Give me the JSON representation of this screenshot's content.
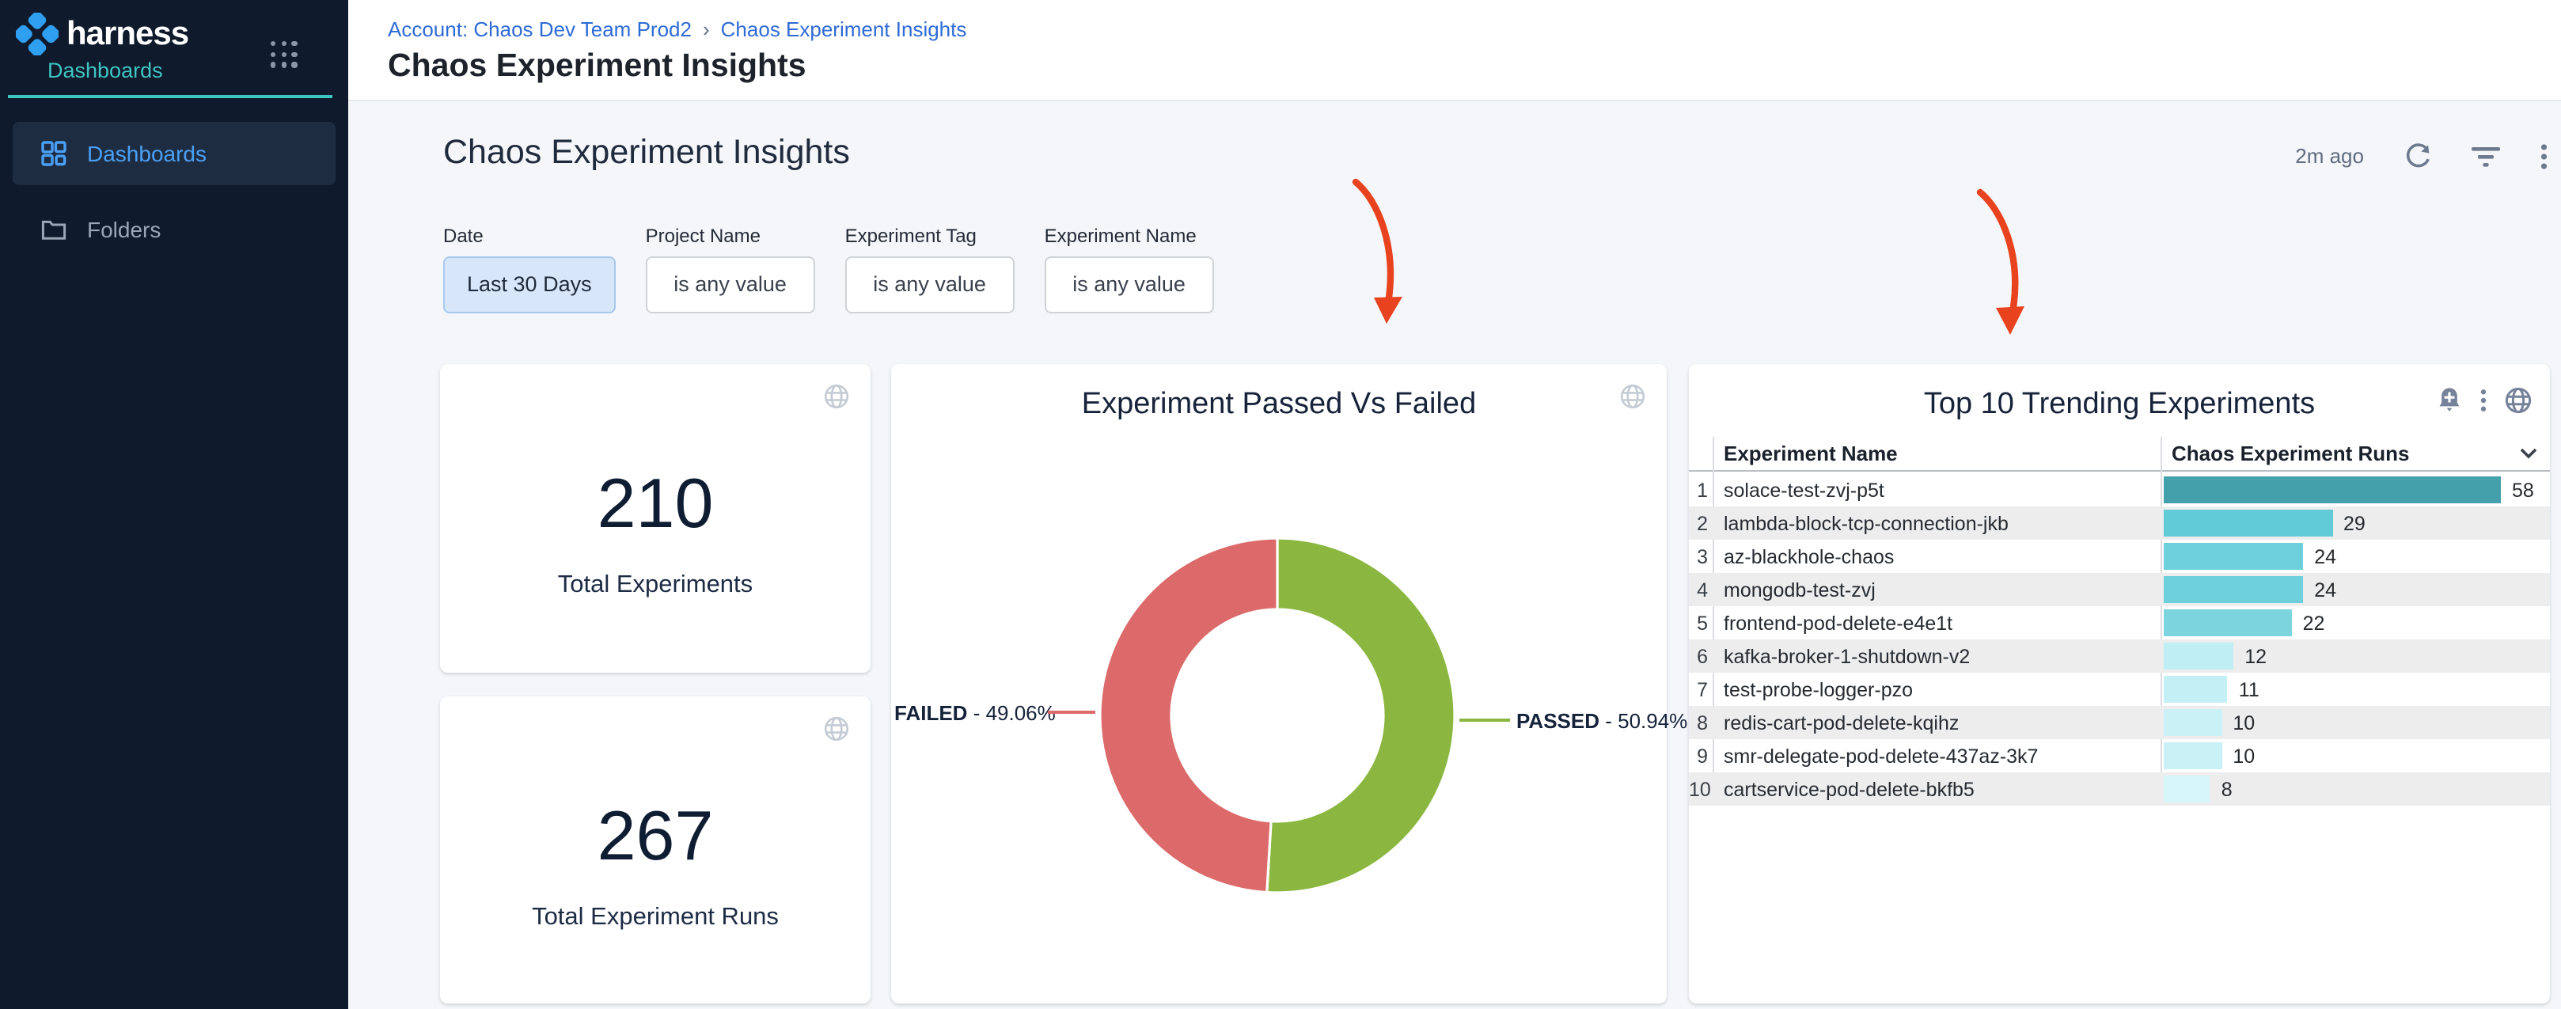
{
  "app": {
    "logo_text": "harness",
    "product": "Dashboards"
  },
  "sidebar": {
    "items": [
      {
        "label": "Dashboards",
        "active": true
      },
      {
        "label": "Folders",
        "active": false
      }
    ]
  },
  "breadcrumb": {
    "account_link": "Account: Chaos Dev Team Prod2",
    "separator": "›",
    "current": "Chaos Experiment Insights"
  },
  "header": {
    "page_title": "Chaos Experiment Insights"
  },
  "toolbar": {
    "heading": "Chaos Experiment Insights",
    "last_updated": "2m ago"
  },
  "filters": [
    {
      "label": "Date",
      "value": "Last 30 Days",
      "highlighted": true
    },
    {
      "label": "Project Name",
      "value": "is any value",
      "highlighted": false
    },
    {
      "label": "Experiment Tag",
      "value": "is any value",
      "highlighted": false
    },
    {
      "label": "Experiment Name",
      "value": "is any value",
      "highlighted": false
    }
  ],
  "stats": [
    {
      "value": "210",
      "label": "Total Experiments"
    },
    {
      "value": "267",
      "label": "Total Experiment Runs"
    }
  ],
  "donut": {
    "title": "Experiment Passed Vs Failed",
    "slices": [
      {
        "label": "PASSED",
        "suffix": " - 50.94%",
        "pct": 50.94,
        "color": "#8bb741"
      },
      {
        "label": "FAILED",
        "suffix": " - 49.06%",
        "pct": 49.06,
        "color": "#dd6a6a"
      }
    ]
  },
  "table": {
    "title": "Top 10 Trending Experiments",
    "columns": [
      "Experiment Name",
      "Chaos Experiment Runs"
    ],
    "max_runs": 58,
    "rows": [
      {
        "rank": "1",
        "name": "solace-test-zvj-p5t",
        "runs": 58,
        "bar_color": "#44a0ab"
      },
      {
        "rank": "2",
        "name": "lambda-block-tcp-connection-jkb",
        "runs": 29,
        "bar_color": "#61cbd8"
      },
      {
        "rank": "3",
        "name": "az-blackhole-chaos",
        "runs": 24,
        "bar_color": "#6ed0da"
      },
      {
        "rank": "4",
        "name": "mongodb-test-zvj",
        "runs": 24,
        "bar_color": "#6ed0da"
      },
      {
        "rank": "5",
        "name": "frontend-pod-delete-e4e1t",
        "runs": 22,
        "bar_color": "#7cd4de"
      },
      {
        "rank": "6",
        "name": "kafka-broker-1-shutdown-v2",
        "runs": 12,
        "bar_color": "#bfeef4"
      },
      {
        "rank": "7",
        "name": "test-probe-logger-pzo",
        "runs": 11,
        "bar_color": "#c4eff5"
      },
      {
        "rank": "8",
        "name": "redis-cart-pod-delete-kqihz",
        "runs": 10,
        "bar_color": "#c9f1f6"
      },
      {
        "rank": "9",
        "name": "smr-delegate-pod-delete-437az-3k7",
        "runs": 10,
        "bar_color": "#c9f1f6"
      },
      {
        "rank": "10",
        "name": "cartservice-pod-delete-bkfb5",
        "runs": 8,
        "bar_color": "#d7f6fa"
      }
    ]
  },
  "colors": {
    "sidebar_bg": "#0f1a2c",
    "sidebar_teal": "#3ec6c3",
    "sidebar_active_bg": "#1e2c41",
    "sidebar_active_text": "#4aa0f6",
    "sidebar_muted": "#9aa5b5",
    "link_blue": "#2e6bd6",
    "content_bg": "#f4f6f9",
    "icon_gray": "#76829a",
    "globe_gray": "#c5cbd4",
    "stripe": "#ededee",
    "passed_green": "#8bb741",
    "failed_red": "#dd6a6a",
    "arrow_red": "#e8421f",
    "date_filter_bg": "#d7e7f9",
    "date_filter_border": "#a6c8ee",
    "button_border": "#cfd2d6",
    "logo_blue": "#2f9ff1"
  },
  "chart_data": [
    {
      "type": "pie",
      "donut": true,
      "title": "Experiment Passed Vs Failed",
      "labels": [
        "PASSED",
        "FAILED"
      ],
      "values": [
        50.94,
        49.06
      ],
      "unit": "%",
      "colors": [
        "#8bb741",
        "#dd6a6a"
      ],
      "legend_position": "callout-labels"
    },
    {
      "type": "bar",
      "orientation": "horizontal",
      "title": "Top 10 Trending Experiments",
      "categories": [
        "solace-test-zvj-p5t",
        "lambda-block-tcp-connection-jkb",
        "az-blackhole-chaos",
        "mongodb-test-zvj",
        "frontend-pod-delete-e4e1t",
        "kafka-broker-1-shutdown-v2",
        "test-probe-logger-pzo",
        "redis-cart-pod-delete-kqihz",
        "smr-delegate-pod-delete-437az-3k7",
        "cartservice-pod-delete-bkfb5"
      ],
      "values": [
        58,
        29,
        24,
        24,
        22,
        12,
        11,
        10,
        10,
        8
      ],
      "xlabel": "Chaos Experiment Runs",
      "xlim": [
        0,
        58
      ],
      "grid": false
    }
  ]
}
